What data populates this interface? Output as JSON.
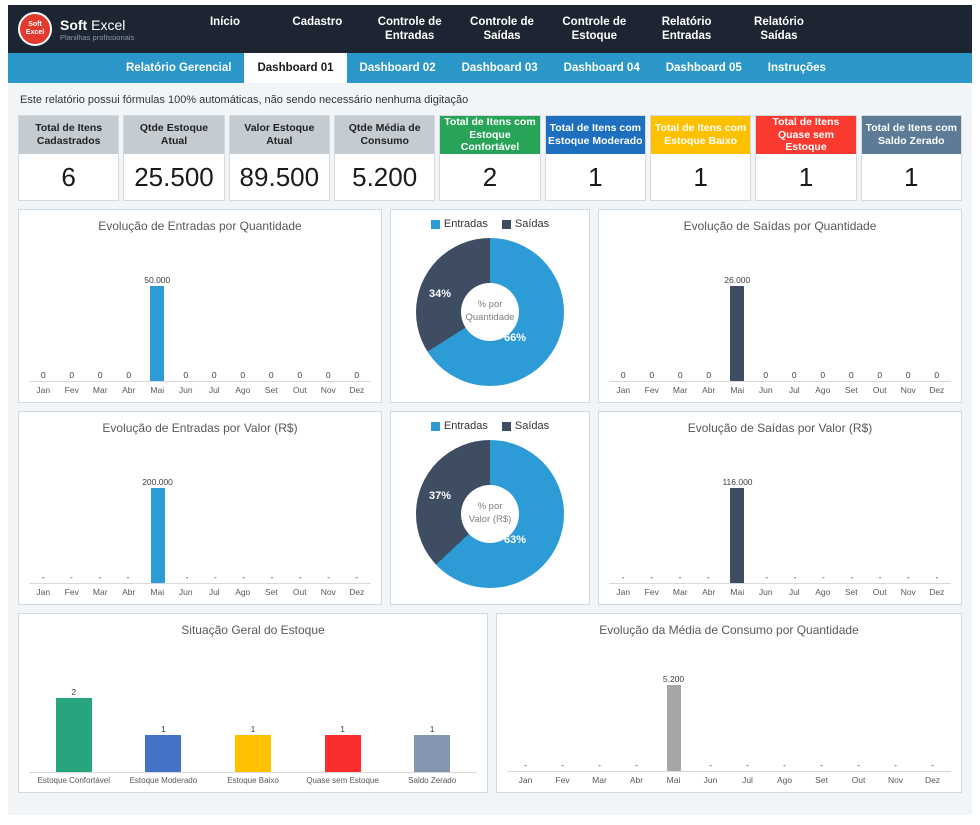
{
  "brand": {
    "logo_line1": "Soft",
    "logo_line2": "Excel",
    "name_primary": "Soft",
    "name_secondary": "Excel",
    "sub": "Planilhas profissionais"
  },
  "top_nav": [
    {
      "label": "Início"
    },
    {
      "label": "Cadastro"
    },
    {
      "label": "Controle de Entradas"
    },
    {
      "label": "Controle de Saídas"
    },
    {
      "label": "Controle de Estoque"
    },
    {
      "label": "Relatório Entradas"
    },
    {
      "label": "Relatório Saídas"
    }
  ],
  "tabs": [
    {
      "label": "Relatório Gerencial",
      "active": false
    },
    {
      "label": "Dashboard 01",
      "active": true
    },
    {
      "label": "Dashboard 02",
      "active": false
    },
    {
      "label": "Dashboard 03",
      "active": false
    },
    {
      "label": "Dashboard 04",
      "active": false
    },
    {
      "label": "Dashboard 05",
      "active": false
    },
    {
      "label": "Instruções",
      "active": false
    }
  ],
  "notice": "Este relatório possui fórmulas 100% automáticas, não sendo necessário nenhuma digitação",
  "kpis": [
    {
      "label": "Total de Itens Cadastrados",
      "value": "6",
      "header_bg": "#c4cbd1",
      "header_text": "#222222"
    },
    {
      "label": "Qtde Estoque Atual",
      "value": "25.500",
      "header_bg": "#c4cbd1",
      "header_text": "#222222"
    },
    {
      "label": "Valor Estoque Atual",
      "value": "89.500",
      "header_bg": "#c4cbd1",
      "header_text": "#222222"
    },
    {
      "label": "Qtde Média de Consumo",
      "value": "5.200",
      "header_bg": "#c4cbd1",
      "header_text": "#222222"
    },
    {
      "label": "Total de Itens com Estoque Confortável",
      "value": "2",
      "header_bg": "#27a457",
      "header_text": "#ffffff"
    },
    {
      "label": "Total de Itens com Estoque Moderado",
      "value": "1",
      "header_bg": "#1e6fbe",
      "header_text": "#ffffff"
    },
    {
      "label": "Total de Itens com Estoque Baixo",
      "value": "1",
      "header_bg": "#fdc100",
      "header_text": "#ffffff"
    },
    {
      "label": "Total de Itens Quase sem Estoque",
      "value": "1",
      "header_bg": "#fb3a30",
      "header_text": "#ffffff"
    },
    {
      "label": "Total de Itens com Saldo Zerado",
      "value": "1",
      "header_bg": "#5c7b97",
      "header_text": "#ffffff"
    }
  ],
  "chart_data": [
    {
      "id": "entradas_quantidade",
      "type": "bar",
      "title": "Evolução de Entradas por Quantidade",
      "categories": [
        "Jan",
        "Fev",
        "Mar",
        "Abr",
        "Mai",
        "Jun",
        "Jul",
        "Ago",
        "Set",
        "Out",
        "Nov",
        "Dez"
      ],
      "values": [
        0,
        0,
        0,
        0,
        50000,
        0,
        0,
        0,
        0,
        0,
        0,
        0
      ],
      "value_labels": [
        "0",
        "0",
        "0",
        "0",
        "50.000",
        "0",
        "0",
        "0",
        "0",
        "0",
        "0",
        "0"
      ],
      "bar_color": "#2d9bd5"
    },
    {
      "id": "percentual_por_quantidade",
      "type": "donut",
      "center_top": "% por",
      "center_bottom": "Quantidade",
      "slices": [
        {
          "name": "Entradas",
          "pct": 66,
          "pct_label": "66%",
          "color": "#2d9bd5"
        },
        {
          "name": "Saídas",
          "pct": 34,
          "pct_label": "34%",
          "color": "#3e4d62"
        }
      ]
    },
    {
      "id": "saidas_quantidade",
      "type": "bar",
      "title": "Evolução de Saídas por Quantidade",
      "categories": [
        "Jan",
        "Fev",
        "Mar",
        "Abr",
        "Mai",
        "Jun",
        "Jul",
        "Ago",
        "Set",
        "Out",
        "Nov",
        "Dez"
      ],
      "values": [
        0,
        0,
        0,
        0,
        26000,
        0,
        0,
        0,
        0,
        0,
        0,
        0
      ],
      "value_labels": [
        "0",
        "0",
        "0",
        "0",
        "26.000",
        "0",
        "0",
        "0",
        "0",
        "0",
        "0",
        "0"
      ],
      "bar_color": "#3e4d62"
    },
    {
      "id": "entradas_valor",
      "type": "bar",
      "title": "Evolução de Entradas por Valor (R$)",
      "categories": [
        "Jan",
        "Fev",
        "Mar",
        "Abr",
        "Mai",
        "Jun",
        "Jul",
        "Ago",
        "Set",
        "Out",
        "Nov",
        "Dez"
      ],
      "values": [
        0,
        0,
        0,
        0,
        200000,
        0,
        0,
        0,
        0,
        0,
        0,
        0
      ],
      "value_labels": [
        "-",
        "-",
        "-",
        "-",
        "200.000",
        "-",
        "-",
        "-",
        "-",
        "-",
        "-",
        "-"
      ],
      "bar_color": "#2d9bd5"
    },
    {
      "id": "percentual_por_valor",
      "type": "donut",
      "center_top": "% por",
      "center_bottom": "Valor (R$)",
      "slices": [
        {
          "name": "Entradas",
          "pct": 63,
          "pct_label": "63%",
          "color": "#2d9bd5"
        },
        {
          "name": "Saídas",
          "pct": 37,
          "pct_label": "37%",
          "color": "#3e4d62"
        }
      ]
    },
    {
      "id": "saidas_valor",
      "type": "bar",
      "title": "Evolução de Saídas por Valor (R$)",
      "categories": [
        "Jan",
        "Fev",
        "Mar",
        "Abr",
        "Mai",
        "Jun",
        "Jul",
        "Ago",
        "Set",
        "Out",
        "Nov",
        "Dez"
      ],
      "values": [
        0,
        0,
        0,
        0,
        116000,
        0,
        0,
        0,
        0,
        0,
        0,
        0
      ],
      "value_labels": [
        "-",
        "-",
        "-",
        "-",
        "116.000",
        "-",
        "-",
        "-",
        "-",
        "-",
        "-",
        "-"
      ],
      "bar_color": "#3e4d62"
    },
    {
      "id": "situacao_geral_estoque",
      "type": "bar",
      "title": "Situação Geral do Estoque",
      "categories": [
        "Estoque Confortável",
        "Estoque Moderado",
        "Estoque Baixo",
        "Quase sem Estoque",
        "Saldo Zerado"
      ],
      "values": [
        2,
        1,
        1,
        1,
        1
      ],
      "value_labels": [
        "2",
        "1",
        "1",
        "1",
        "1"
      ],
      "colors": [
        "#27a57e",
        "#4472c4",
        "#ffc000",
        "#fa2e2e",
        "#8496af"
      ]
    },
    {
      "id": "media_consumo_quantidade",
      "type": "bar",
      "title": "Evolução da Média de Consumo por Quantidade",
      "categories": [
        "Jan",
        "Fev",
        "Mar",
        "Abr",
        "Mai",
        "Jun",
        "Jul",
        "Ago",
        "Set",
        "Out",
        "Nov",
        "Dez"
      ],
      "values": [
        0,
        0,
        0,
        0,
        5200,
        0,
        0,
        0,
        0,
        0,
        0,
        0
      ],
      "value_labels": [
        "-",
        "-",
        "-",
        "-",
        "5.200",
        "-",
        "-",
        "-",
        "-",
        "-",
        "-",
        "-"
      ],
      "bar_color": "#a6a6a6"
    }
  ]
}
